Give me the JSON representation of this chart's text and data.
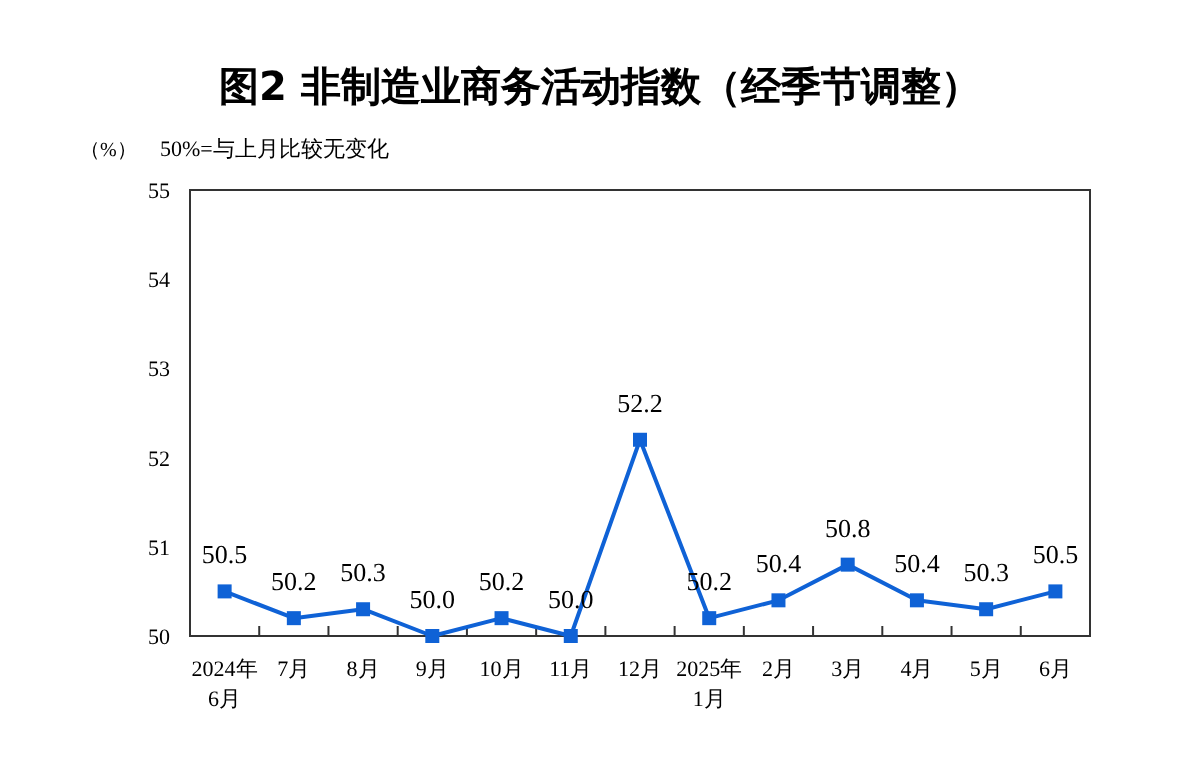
{
  "chart_data": {
    "type": "line",
    "title": "图2 非制造业商务活动指数（经季节调整）",
    "ylabel": "（%）",
    "annotations": [
      "50%=与上月比较无变化"
    ],
    "categories": [
      "2024年\n6月",
      "7月",
      "8月",
      "9月",
      "10月",
      "11月",
      "12月",
      "2025年\n1月",
      "2月",
      "3月",
      "4月",
      "5月",
      "6月"
    ],
    "series": [
      {
        "color": "#0f62d6",
        "values": [
          50.5,
          50.2,
          50.3,
          50.0,
          50.2,
          50.0,
          52.2,
          50.2,
          50.4,
          50.8,
          50.4,
          50.3,
          50.5
        ],
        "value_labels": [
          "50.5",
          "50.2",
          "50.3",
          "50.0",
          "50.2",
          "50.0",
          "52.2",
          "50.2",
          "50.4",
          "50.8",
          "50.4",
          "50.3",
          "50.5"
        ]
      }
    ],
    "ylim": [
      50,
      55
    ],
    "yticks": [
      50,
      51,
      52,
      53,
      54,
      55
    ],
    "marker": "square",
    "line_style": "solid"
  }
}
